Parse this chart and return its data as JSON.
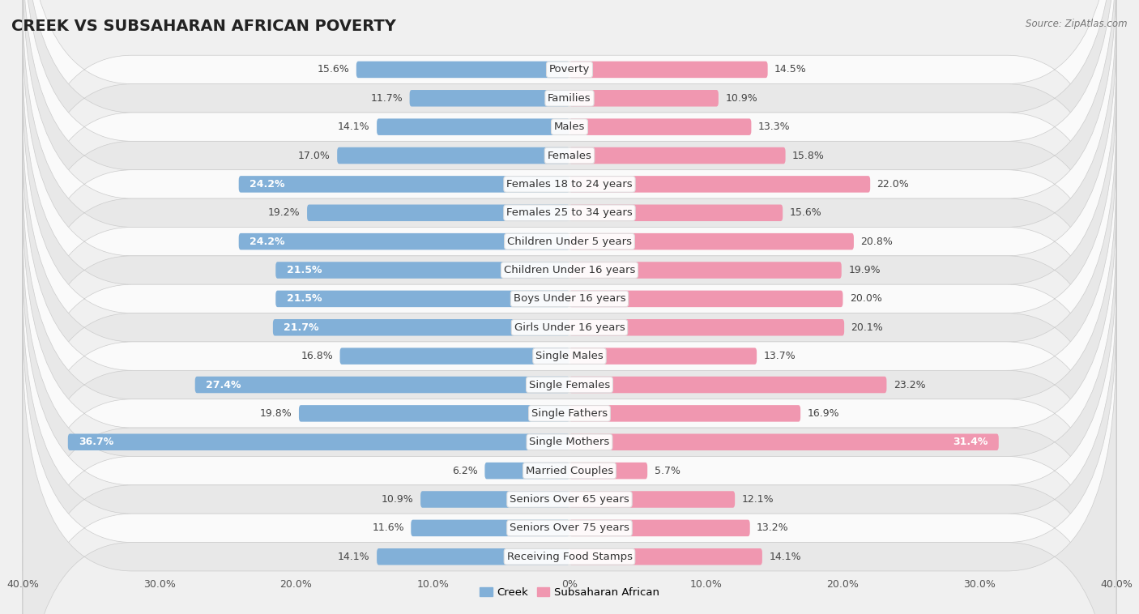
{
  "title": "CREEK VS SUBSAHARAN AFRICAN POVERTY",
  "source": "Source: ZipAtlas.com",
  "categories": [
    "Poverty",
    "Families",
    "Males",
    "Females",
    "Females 18 to 24 years",
    "Females 25 to 34 years",
    "Children Under 5 years",
    "Children Under 16 years",
    "Boys Under 16 years",
    "Girls Under 16 years",
    "Single Males",
    "Single Females",
    "Single Fathers",
    "Single Mothers",
    "Married Couples",
    "Seniors Over 65 years",
    "Seniors Over 75 years",
    "Receiving Food Stamps"
  ],
  "creek_values": [
    15.6,
    11.7,
    14.1,
    17.0,
    24.2,
    19.2,
    24.2,
    21.5,
    21.5,
    21.7,
    16.8,
    27.4,
    19.8,
    36.7,
    6.2,
    10.9,
    11.6,
    14.1
  ],
  "subsaharan_values": [
    14.5,
    10.9,
    13.3,
    15.8,
    22.0,
    15.6,
    20.8,
    19.9,
    20.0,
    20.1,
    13.7,
    23.2,
    16.9,
    31.4,
    5.7,
    12.1,
    13.2,
    14.1
  ],
  "creek_color": "#82b0d8",
  "subsaharan_color": "#f097b0",
  "background_color": "#f0f0f0",
  "row_color_light": "#fafafa",
  "row_color_dark": "#e8e8e8",
  "axis_limit": 40.0,
  "bar_height": 0.58,
  "legend_labels": [
    "Creek",
    "Subsaharan African"
  ],
  "title_fontsize": 14,
  "label_fontsize": 9,
  "category_fontsize": 9.5,
  "tick_fontsize": 9
}
